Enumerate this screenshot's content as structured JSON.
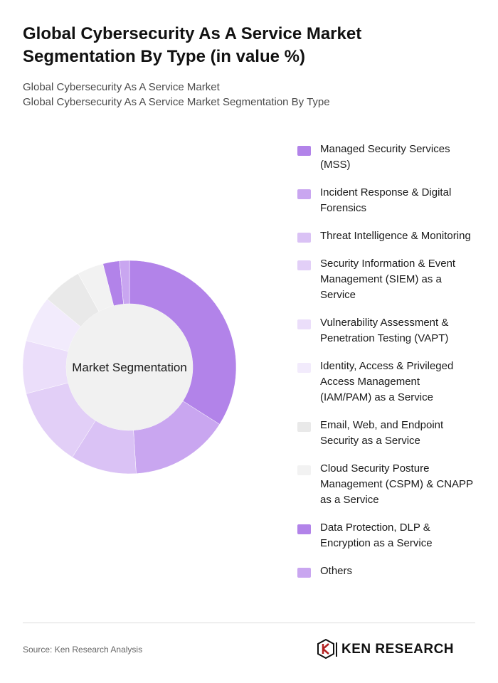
{
  "header": {
    "title": "Global Cybersecurity As A Service Market Segmentation By Type (in value %)",
    "subtitle_line1": "Global Cybersecurity As A Service Market",
    "subtitle_line2": "Global Cybersecurity As A Service Market Segmentation By Type"
  },
  "chart_data": {
    "type": "pie",
    "variant": "donut",
    "center_label": "Market Segmentation",
    "legend_position": "right",
    "categories": [
      "Managed Security Services (MSS)",
      "Incident Response & Digital Forensics",
      "Threat Intelligence & Monitoring",
      "Security Information & Event Management (SIEM) as a Service",
      "Vulnerability Assessment & Penetration Testing (VAPT)",
      "Identity, Access & Privileged Access Management (IAM/PAM) as a Service",
      "Email, Web, and Endpoint Security as a Service",
      "Cloud Security Posture Management (CSPM) & CNAPP as a Service",
      "Data Protection, DLP & Encryption as a Service",
      "Others"
    ],
    "values": [
      34,
      15,
      10,
      12,
      8,
      7,
      6,
      4,
      2.5,
      1.5
    ],
    "colors": [
      "#b283e9",
      "#c9a6f0",
      "#dac2f5",
      "#e2cff7",
      "#ebdefa",
      "#f2ebfc",
      "#e9e9e9",
      "#f2f2f2",
      "#b283e9",
      "#c9a6f0"
    ]
  },
  "footer": {
    "source": "Source: Ken Research Analysis",
    "brand": "KEN RESEARCH"
  }
}
